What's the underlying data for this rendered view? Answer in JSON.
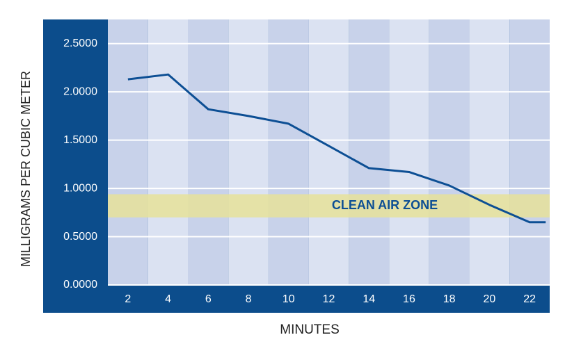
{
  "chart_data": {
    "type": "line",
    "xlabel": "MINUTES",
    "ylabel": "MILLIGRAMS PER CUBIC METER",
    "x": [
      2,
      4,
      6,
      8,
      10,
      12,
      14,
      16,
      18,
      20,
      22,
      22.8
    ],
    "series": [
      {
        "color": "#0d4f94",
        "values": [
          2.13,
          2.18,
          1.82,
          1.75,
          1.67,
          1.44,
          1.21,
          1.17,
          1.03,
          0.83,
          0.65,
          0.65
        ]
      }
    ],
    "xlim": [
      1,
      23
    ],
    "xticks": [
      2,
      4,
      6,
      8,
      10,
      12,
      14,
      16,
      18,
      20,
      22
    ],
    "ylim": [
      0,
      2.75
    ],
    "yticks": [
      {
        "value": 0,
        "label": "0.0000"
      },
      {
        "value": 0.5,
        "label": "0.5000"
      },
      {
        "value": 1,
        "label": "1.0000"
      },
      {
        "value": 1.5,
        "label": "1.5000"
      },
      {
        "value": 2,
        "label": "2.0000"
      },
      {
        "value": 2.5,
        "label": "2.5000"
      }
    ],
    "grid": true,
    "zone": {
      "label": "CLEAN AIR ZONE",
      "range": [
        0.7,
        0.94
      ],
      "color": "#e6e29a"
    }
  }
}
